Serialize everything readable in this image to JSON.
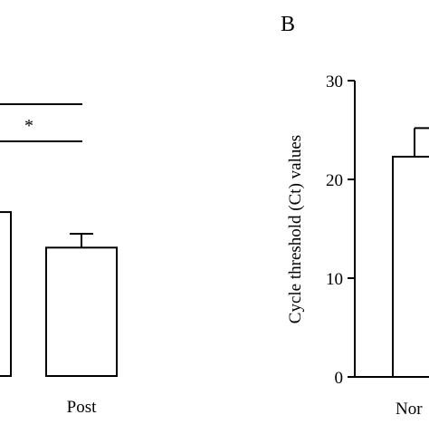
{
  "chart_data": [
    {
      "type": "bar",
      "panel_label": "",
      "categories": [
        "",
        "Post"
      ],
      "values": [
        16.6,
        13.0
      ],
      "error_upper": [
        null,
        1.4
      ],
      "significance": "*",
      "colors": {
        "bar_fill": "#ffffff",
        "stroke": "#000000"
      }
    },
    {
      "type": "bar",
      "panel_label": "B",
      "ylabel": "Cycle threshold (Ct) values",
      "ylim": [
        0,
        30
      ],
      "yticks": [
        0,
        10,
        20,
        30
      ],
      "categories": [
        "Nor"
      ],
      "values": [
        22.3
      ],
      "error_upper": [
        2.9
      ],
      "colors": {
        "bar_fill": "#ffffff",
        "stroke": "#000000"
      }
    }
  ]
}
